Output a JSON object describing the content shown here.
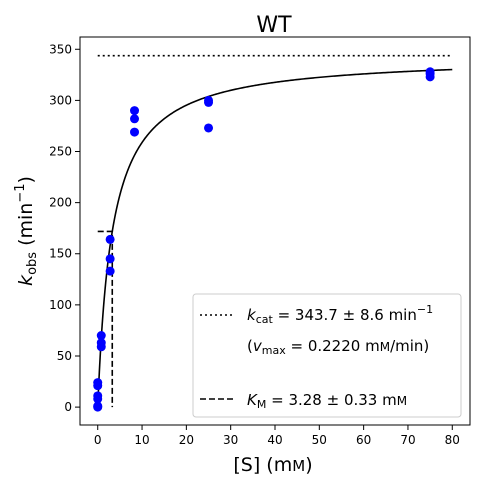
{
  "chart_data": {
    "type": "scatter",
    "title": "WT",
    "xlabel": "[S] (mM)",
    "xlabel_main": "[S] (m",
    "xlabel_unit": "M",
    "xlabel_close": ")",
    "ylabel_k": "k",
    "ylabel_sub": "obs",
    "ylabel_mid": " (min",
    "ylabel_sup": "−1",
    "ylabel_close": ")",
    "xlim": [
      -4,
      84
    ],
    "ylim": [
      -17.5,
      362
    ],
    "xticks": [
      0,
      10,
      20,
      30,
      40,
      50,
      60,
      70,
      80
    ],
    "yticks": [
      0,
      50,
      100,
      150,
      200,
      250,
      300,
      350
    ],
    "grid": false,
    "legend_placement": "lower-right",
    "points": [
      {
        "x": 0,
        "y": 0
      },
      {
        "x": 0,
        "y": 1
      },
      {
        "x": 0,
        "y": 8
      },
      {
        "x": 0,
        "y": 11
      },
      {
        "x": 0,
        "y": 21
      },
      {
        "x": 0,
        "y": 24
      },
      {
        "x": 0.8,
        "y": 59
      },
      {
        "x": 0.8,
        "y": 63
      },
      {
        "x": 0.8,
        "y": 70
      },
      {
        "x": 2.8,
        "y": 133
      },
      {
        "x": 2.8,
        "y": 145
      },
      {
        "x": 2.8,
        "y": 164
      },
      {
        "x": 8.3,
        "y": 269
      },
      {
        "x": 8.3,
        "y": 282
      },
      {
        "x": 8.3,
        "y": 290
      },
      {
        "x": 25,
        "y": 273
      },
      {
        "x": 25,
        "y": 298
      },
      {
        "x": 25,
        "y": 300
      },
      {
        "x": 75,
        "y": 323
      },
      {
        "x": 75,
        "y": 326
      },
      {
        "x": 75,
        "y": 328
      }
    ],
    "point_color": "#0000ff",
    "curve": {
      "kcat": 343.7,
      "km": 3.28,
      "x_range": [
        0,
        80
      ],
      "color": "#000000"
    },
    "kcat_line": {
      "y": 343.7,
      "x_range": [
        0,
        80
      ]
    },
    "km_line": {
      "x": 3.28,
      "y": 171.85
    },
    "legend": {
      "kcat_k": "k",
      "kcat_sub": "cat",
      "kcat_value": " = 343.7 ± 8.6 min",
      "kcat_sup": "−1",
      "vmax_open": "(",
      "vmax_v": "v",
      "vmax_sub": "max",
      "vmax_value": " = 0.2220 mM/min)",
      "vmax_value_main": " = 0.2220 m",
      "vmax_value_unit": "M",
      "vmax_value_tail": "/min)",
      "km_k": "K",
      "km_sub": "M",
      "km_value": " = 3.28 ± 0.33 mM",
      "km_value_main": " = 3.28 ± 0.33 m",
      "km_value_unit": "M"
    }
  }
}
